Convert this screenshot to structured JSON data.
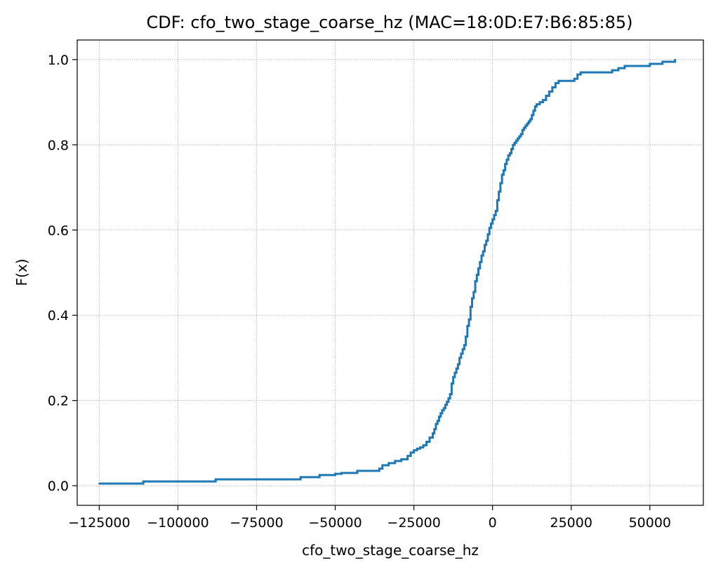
{
  "chart_data": {
    "type": "line",
    "title": "CDF: cfo_two_stage_coarse_hz (MAC=18:0D:E7:B6:85:85)",
    "xlabel": "cfo_two_stage_coarse_hz",
    "ylabel": "F(x)",
    "xlim": [
      -132000,
      67000
    ],
    "ylim": [
      -0.046,
      1.046
    ],
    "x_ticks": [
      -125000,
      -100000,
      -75000,
      -50000,
      -25000,
      0,
      25000,
      50000
    ],
    "x_tick_labels": [
      "−125000",
      "−100000",
      "−75000",
      "−50000",
      "−25000",
      "0",
      "25000",
      "50000"
    ],
    "y_ticks": [
      0.0,
      0.2,
      0.4,
      0.6,
      0.8,
      1.0
    ],
    "y_tick_labels": [
      "0.0",
      "0.2",
      "0.4",
      "0.6",
      "0.8",
      "1.0"
    ],
    "grid": true,
    "series": [
      {
        "color": "#1f77b4",
        "step": true,
        "x": [
          -125000,
          -111000,
          -88000,
          -61000,
          -55000,
          -50000,
          -48000,
          -43000,
          -36000,
          -35000,
          -33000,
          -31000,
          -29000,
          -27000,
          -26000,
          -25000,
          -24000,
          -23000,
          -22000,
          -21000,
          -20000,
          -19000,
          -18500,
          -18000,
          -17500,
          -17000,
          -16500,
          -16000,
          -15500,
          -15000,
          -14500,
          -14000,
          -13500,
          -13000,
          -12500,
          -12000,
          -11500,
          -11000,
          -10500,
          -10000,
          -9500,
          -9000,
          -8500,
          -8000,
          -7500,
          -7000,
          -6500,
          -6000,
          -5500,
          -5000,
          -4500,
          -4000,
          -3500,
          -3000,
          -2500,
          -2000,
          -1500,
          -1000,
          -500,
          0,
          500,
          1000,
          1500,
          2000,
          2500,
          3000,
          3500,
          4000,
          4500,
          5000,
          5500,
          6000,
          6500,
          7000,
          7500,
          8000,
          8500,
          9000,
          9500,
          10000,
          10500,
          11000,
          11500,
          12000,
          12500,
          13000,
          13500,
          14000,
          15000,
          16000,
          17000,
          18000,
          19000,
          20000,
          21000,
          26000,
          27000,
          28000,
          38000,
          40000,
          42000,
          50000,
          54000,
          58000
        ],
        "values": [
          0.005,
          0.01,
          0.015,
          0.02,
          0.025,
          0.028,
          0.03,
          0.035,
          0.04,
          0.048,
          0.053,
          0.058,
          0.062,
          0.07,
          0.078,
          0.083,
          0.087,
          0.09,
          0.095,
          0.103,
          0.113,
          0.123,
          0.133,
          0.145,
          0.152,
          0.162,
          0.17,
          0.177,
          0.182,
          0.19,
          0.197,
          0.205,
          0.215,
          0.24,
          0.255,
          0.265,
          0.275,
          0.285,
          0.3,
          0.31,
          0.32,
          0.33,
          0.35,
          0.375,
          0.39,
          0.42,
          0.44,
          0.455,
          0.48,
          0.495,
          0.51,
          0.525,
          0.54,
          0.55,
          0.565,
          0.575,
          0.59,
          0.605,
          0.615,
          0.625,
          0.635,
          0.645,
          0.67,
          0.69,
          0.71,
          0.73,
          0.74,
          0.755,
          0.765,
          0.775,
          0.78,
          0.79,
          0.8,
          0.805,
          0.81,
          0.815,
          0.82,
          0.825,
          0.835,
          0.84,
          0.845,
          0.85,
          0.855,
          0.86,
          0.87,
          0.88,
          0.89,
          0.895,
          0.9,
          0.905,
          0.915,
          0.925,
          0.935,
          0.945,
          0.95,
          0.955,
          0.965,
          0.97,
          0.975,
          0.98,
          0.985,
          0.99,
          0.995,
          1.0
        ]
      }
    ]
  }
}
